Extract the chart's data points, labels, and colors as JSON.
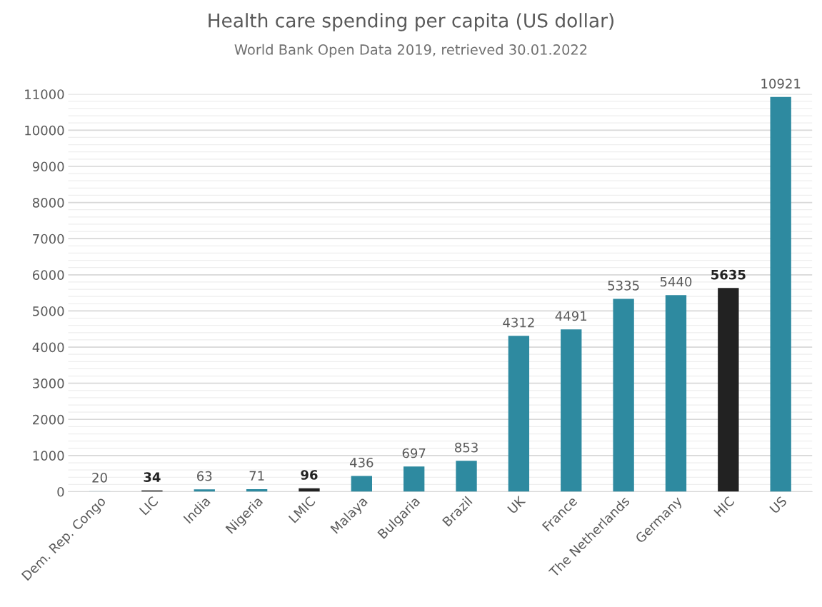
{
  "chart_data": {
    "type": "bar",
    "title": "Health care spending per capita (US dollar)",
    "subtitle": "World Bank Open Data 2019, retrieved 30.01.2022",
    "categories": [
      "Dem. Rep. Congo",
      "LIC",
      "India",
      "Nigeria",
      "LMIC",
      "Malaya",
      "Bulgaria",
      "Brazil",
      "UK",
      "France",
      "The Netherlands",
      "Germany",
      "HIC",
      "US"
    ],
    "values": [
      20,
      34,
      63,
      71,
      96,
      436,
      697,
      853,
      4312,
      4491,
      5335,
      5440,
      5635,
      10921
    ],
    "colors": [
      "#c9d9df",
      "#222222",
      "#2e8aa0",
      "#2e8aa0",
      "#222222",
      "#2e8aa0",
      "#2e8aa0",
      "#2e8aa0",
      "#2e8aa0",
      "#2e8aa0",
      "#2e8aa0",
      "#2e8aa0",
      "#222222",
      "#2e8aa0"
    ],
    "ylim": [
      0,
      11000
    ],
    "yticks": [
      0,
      1000,
      2000,
      3000,
      4000,
      5000,
      6000,
      7000,
      8000,
      9000,
      10000,
      11000
    ],
    "grid": "y",
    "data_labels": true
  }
}
